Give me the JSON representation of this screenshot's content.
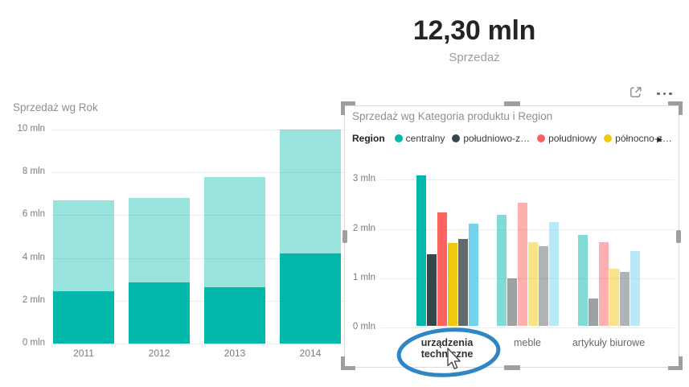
{
  "kpi": {
    "value": "12,30 mln",
    "label": "Sprzedaż"
  },
  "chart_data": [
    {
      "id": "sales-by-year",
      "type": "bar",
      "subtype": "stacked-highlight",
      "title": "Sprzedaż wg Rok",
      "categories": [
        "2011",
        "2012",
        "2013",
        "2014"
      ],
      "series": [
        {
          "name": "highlighted",
          "values": [
            2.45,
            2.85,
            2.65,
            4.2
          ],
          "color": "#01B8AA"
        },
        {
          "name": "total",
          "values": [
            6.7,
            6.8,
            7.8,
            10.0
          ],
          "color": "#01B8AA"
        }
      ],
      "ylim": [
        0,
        10
      ],
      "ytick_labels": [
        "0 mln",
        "2 mln",
        "4 mln",
        "6 mln",
        "8 mln",
        "10 mln"
      ],
      "grid": true,
      "legend_position": "none"
    },
    {
      "id": "sales-by-category-and-region",
      "type": "bar",
      "subtype": "clustered",
      "title": "Sprzedaż wg Kategoria produktu i Region",
      "legend_title": "Region",
      "legend_position": "top",
      "categories": [
        "urządzenia techniczne",
        "meble",
        "artykuły biurowe"
      ],
      "highlighted_category": "urządzenia techniczne",
      "series": [
        {
          "name": "centralny",
          "color": "#01B8AA",
          "values": [
            3.05,
            2.26,
            1.85
          ]
        },
        {
          "name": "południowo-z…",
          "color": "#37464A",
          "values": [
            1.45,
            0.97,
            0.56
          ]
        },
        {
          "name": "południowy",
          "color": "#FD625E",
          "values": [
            2.3,
            2.5,
            1.7
          ]
        },
        {
          "name": "północno-z…",
          "color": "#F2C80F",
          "values": [
            1.68,
            1.7,
            1.16
          ]
        },
        {
          "name": "",
          "color": "#5F6B6D",
          "values": [
            1.77,
            1.62,
            1.1
          ]
        },
        {
          "name": "",
          "color": "#74D4EE",
          "values": [
            2.08,
            2.1,
            1.52
          ]
        }
      ],
      "ylim": [
        0,
        3
      ],
      "ytick_labels": [
        "0 mln",
        "1 mln",
        "2 mln",
        "3 mln"
      ],
      "grid": true
    }
  ],
  "ui": {
    "legend_overflow_glyph": "▶",
    "focus_mode_icon": "focus-mode",
    "more_options_icon": "more-options"
  },
  "colors": {
    "teal": "#01B8AA",
    "charcoal": "#37464A",
    "red": "#FD625E",
    "yellow": "#F2C80F",
    "slate": "#5F6B6D",
    "light_blue": "#74D4EE",
    "annotation_blue": "#2E86C4",
    "handle_gray": "#9E9E9E"
  }
}
